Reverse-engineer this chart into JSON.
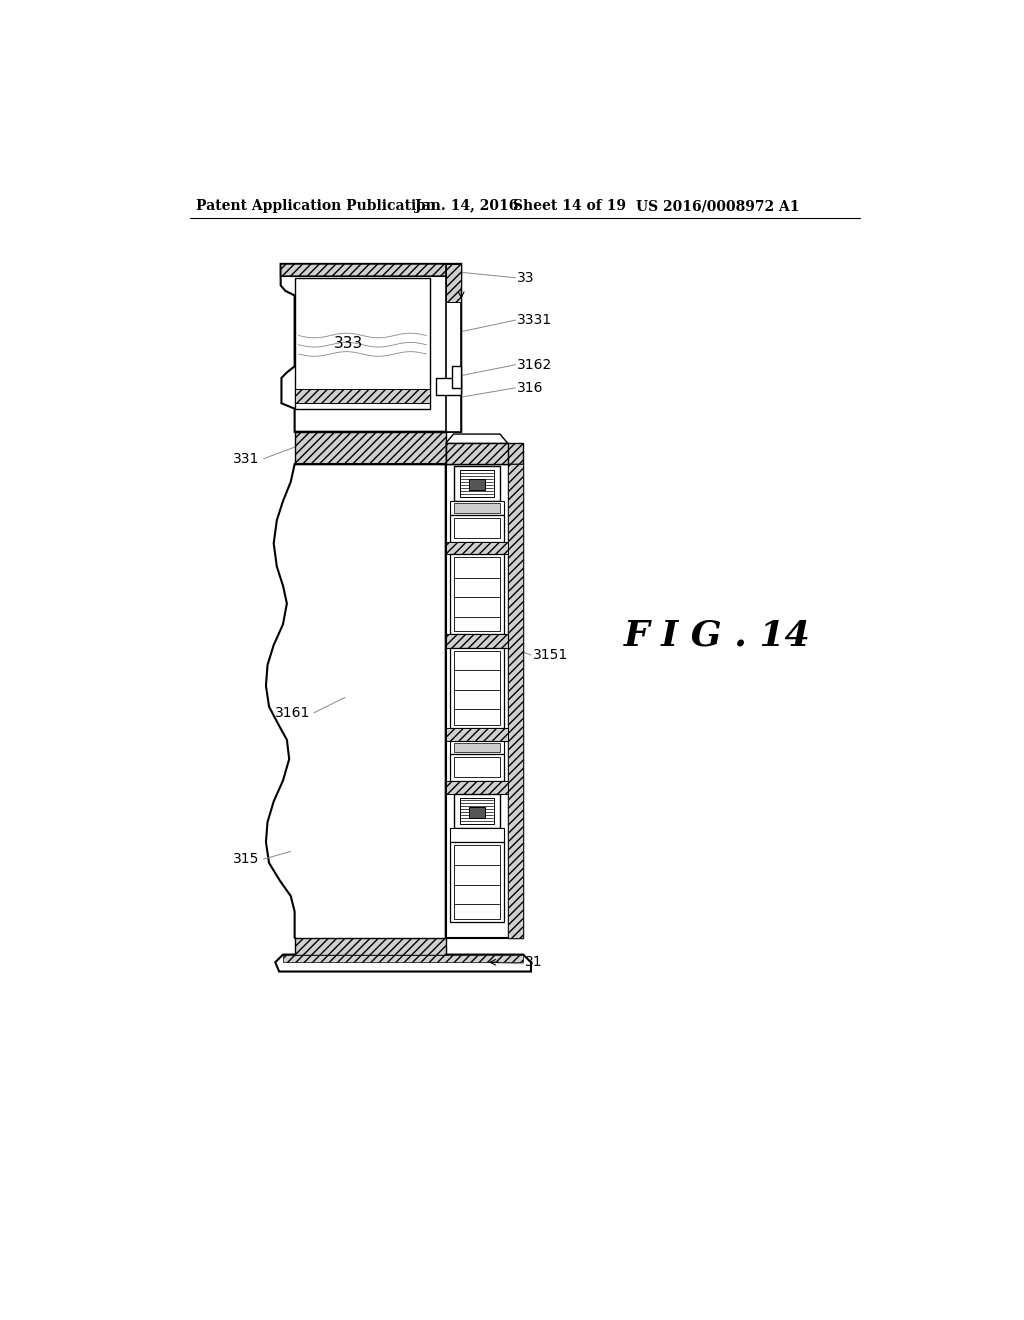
{
  "bg": "#ffffff",
  "header_left": "Patent Application Publication",
  "header_mid1": "Jan. 14, 2016",
  "header_mid2": "Sheet 14 of 19",
  "header_right": "US 2016/0008972 A1",
  "fig_label": "F I G . 14"
}
